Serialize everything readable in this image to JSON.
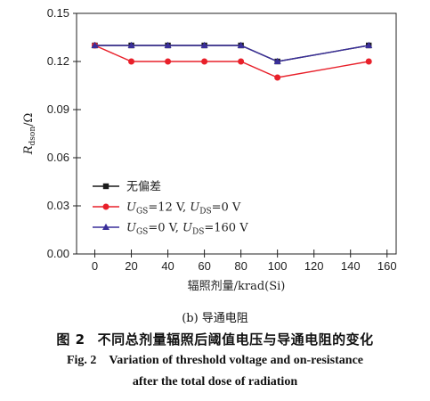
{
  "chart_data": {
    "type": "line",
    "x": [
      0,
      20,
      40,
      60,
      80,
      100,
      150
    ],
    "xlabel": "辐照剂量/krad(Si)",
    "ylabel": "R",
    "ylabel_sub": "dson",
    "ylabel_unit": "/Ω",
    "xlim": [
      -10,
      165
    ],
    "ylim": [
      0,
      0.15
    ],
    "xticks": [
      0,
      20,
      40,
      60,
      80,
      100,
      120,
      140,
      160
    ],
    "yticks": [
      "0.00",
      "0.03",
      "0.06",
      "0.09",
      "0.12",
      "0.15"
    ],
    "grid": false,
    "legend_position": "bottom-left",
    "series": [
      {
        "name": "无偏差",
        "label_parts": [
          {
            "t": "无偏差"
          }
        ],
        "values": [
          0.13,
          0.13,
          0.13,
          0.13,
          0.13,
          0.12,
          0.13
        ],
        "color": "#1a1a1a",
        "marker": "square"
      },
      {
        "name": "UGS=12 V, UDS=0 V",
        "label_parts": [
          {
            "t": "U",
            "i": true
          },
          {
            "t": "GS",
            "sub": true
          },
          {
            "t": "=12 V, "
          },
          {
            "t": "U",
            "i": true
          },
          {
            "t": "DS",
            "sub": true
          },
          {
            "t": "=0 V"
          }
        ],
        "values": [
          0.13,
          0.12,
          0.12,
          0.12,
          0.12,
          0.11,
          0.12
        ],
        "color": "#e8202a",
        "marker": "circle"
      },
      {
        "name": "UGS=0 V, UDS=160 V",
        "label_parts": [
          {
            "t": "U",
            "i": true
          },
          {
            "t": "GS",
            "sub": true
          },
          {
            "t": "=0 V, "
          },
          {
            "t": "U",
            "i": true
          },
          {
            "t": "DS",
            "sub": true
          },
          {
            "t": "=160 V"
          }
        ],
        "values": [
          0.13,
          0.13,
          0.13,
          0.13,
          0.13,
          0.12,
          0.13
        ],
        "color": "#3a2f9a",
        "marker": "triangle"
      }
    ]
  },
  "captions": {
    "subcaption": "(b)  导通电阻",
    "zh_number": "图 2",
    "zh_text": "不同总剂量辐照后阈值电压与导通电阻的变化",
    "en_number": "Fig. 2",
    "en_text_line1": "Variation of threshold voltage and on-resistance",
    "en_text_line2": "after the total dose of radiation"
  }
}
